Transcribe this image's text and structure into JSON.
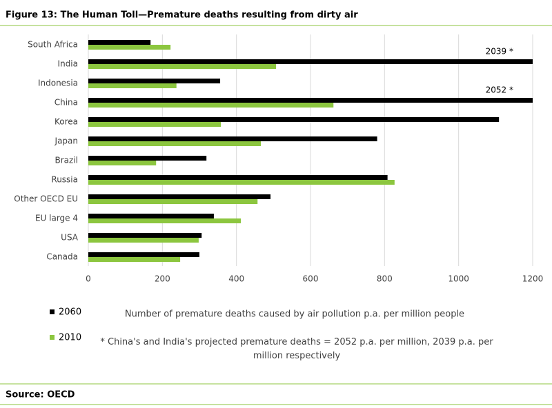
{
  "chart_data": {
    "type": "hbar",
    "title": "Figure 13: The Human Toll—Premature deaths resulting from dirty air",
    "categories": [
      "South Africa",
      "India",
      "Indonesia",
      "China",
      "Korea",
      "Japan",
      "Brazil",
      "Russia",
      "Other OECD EU",
      "EU large 4",
      "USA",
      "Canada"
    ],
    "series": [
      {
        "name": "2060",
        "color": "#000000",
        "values": [
          168,
          2039,
          356,
          2052,
          1109,
          780,
          319,
          808,
          492,
          339,
          306,
          300
        ],
        "value_labels": [
          null,
          "2039 *",
          null,
          "2052 *",
          null,
          null,
          null,
          null,
          null,
          null,
          null,
          null
        ]
      },
      {
        "name": "2010",
        "color": "#8cc63f",
        "values": [
          222,
          507,
          238,
          662,
          358,
          466,
          183,
          827,
          457,
          412,
          298,
          248
        ]
      }
    ],
    "xlim": [
      0,
      1200
    ],
    "xticks": [
      0,
      200,
      400,
      600,
      800,
      1000,
      1200
    ],
    "xlabel": "Number of premature deaths caused by air pollution p.a. per million people",
    "footnote": "* China's and India's projected premature deaths = 2052 p.a. per million, 2039 p.a. per million respectively",
    "source": "Source: OECD",
    "grid": true
  }
}
